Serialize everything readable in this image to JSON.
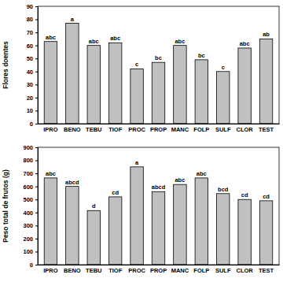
{
  "chart_data": [
    {
      "type": "bar",
      "y_label": "Flores doentes",
      "categories": [
        "IPRO",
        "BENO",
        "TEBU",
        "TIOF",
        "PROC",
        "PROP",
        "MANC",
        "FOLP",
        "SULF",
        "CLOR",
        "TEST"
      ],
      "values": [
        63,
        77,
        60,
        62,
        42,
        47,
        60,
        49,
        40,
        58,
        65
      ],
      "annotations": [
        "abc",
        "a",
        "abc",
        "abc",
        "c",
        "bc",
        "abc",
        "bc",
        "c",
        "abc",
        "ab"
      ],
      "color": "#c0c0c0",
      "ylim": [
        0,
        90
      ],
      "yticks": [
        0,
        10,
        20,
        30,
        40,
        50,
        60,
        70,
        80,
        90
      ],
      "grid": false
    },
    {
      "type": "bar",
      "y_label": "Peso total de frutos (g)",
      "categories": [
        "IPRO",
        "BENO",
        "TEBU",
        "TIOF",
        "PROC",
        "PROP",
        "MANC",
        "FOLP",
        "SULF",
        "CLOR",
        "TEST"
      ],
      "values": [
        665,
        600,
        415,
        520,
        750,
        560,
        615,
        665,
        545,
        500,
        490
      ],
      "annotations": [
        "abc",
        "abcd",
        "d",
        "cd",
        "a",
        "abcd",
        "abc",
        "abc",
        "bcd",
        "cd",
        "cd"
      ],
      "color": "#c0c0c0",
      "ylim": [
        0,
        900
      ],
      "yticks": [
        0,
        100,
        200,
        300,
        400,
        500,
        600,
        700,
        800,
        900
      ],
      "grid": false
    }
  ]
}
